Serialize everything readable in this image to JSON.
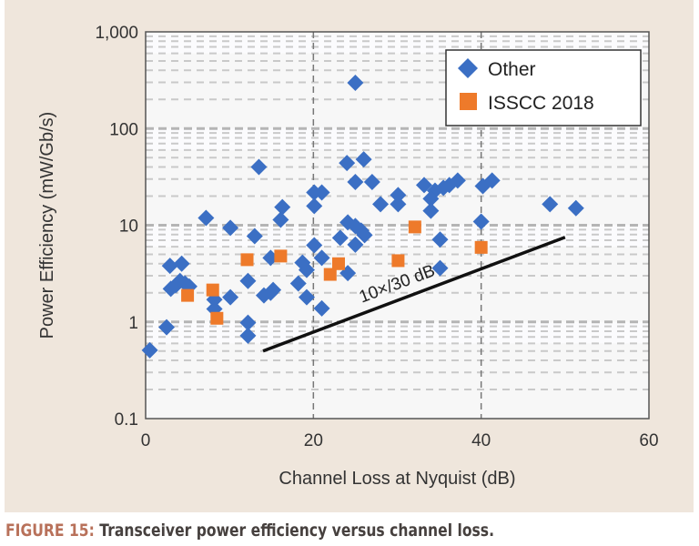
{
  "chart_data": {
    "type": "scatter",
    "xlabel": "Channel Loss at Nyquist (dB)",
    "ylabel": "Power Efficiency (mW/Gb/s)",
    "xlim": [
      0,
      60
    ],
    "ylim": [
      0.1,
      1000
    ],
    "yscale": "log",
    "xticks": [
      "0",
      "20",
      "40",
      "60"
    ],
    "yticks": [
      "0.1",
      "1",
      "10",
      "100",
      "1,000"
    ],
    "grid": true,
    "legend_position": "top-right",
    "colors": {
      "Other": "#3b6fc4",
      "ISSCC 2018": "#ee7a2a"
    },
    "series": [
      {
        "name": "Other",
        "marker": "diamond",
        "points": [
          [
            0.5,
            0.51
          ],
          [
            2.5,
            0.88
          ],
          [
            2.9,
            3.8
          ],
          [
            4.3,
            4.0
          ],
          [
            3.0,
            2.2
          ],
          [
            3.6,
            2.4
          ],
          [
            4.1,
            2.65
          ],
          [
            4.7,
            2.5
          ],
          [
            5.2,
            2.33
          ],
          [
            7.2,
            11.9
          ],
          [
            8.2,
            1.7
          ],
          [
            8.2,
            1.36
          ],
          [
            10.1,
            9.4
          ],
          [
            10.1,
            1.8
          ],
          [
            12.2,
            2.65
          ],
          [
            12.2,
            0.98
          ],
          [
            12.2,
            0.72
          ],
          [
            13.5,
            40
          ],
          [
            13,
            7.7
          ],
          [
            14.1,
            1.88
          ],
          [
            14.9,
            2.0
          ],
          [
            15.2,
            2.14
          ],
          [
            14.9,
            4.6
          ],
          [
            16.3,
            15.4
          ],
          [
            16.1,
            11.4
          ],
          [
            18.2,
            2.5
          ],
          [
            18.7,
            4.1
          ],
          [
            19.2,
            3.45
          ],
          [
            19.2,
            1.8
          ],
          [
            20.1,
            21.8
          ],
          [
            21,
            21.8
          ],
          [
            20.1,
            15.8
          ],
          [
            20.1,
            6.2
          ],
          [
            21,
            4.6
          ],
          [
            21,
            1.38
          ],
          [
            23.2,
            7.4
          ],
          [
            24.1,
            10.7
          ],
          [
            25,
            9.8
          ],
          [
            25.7,
            8.8
          ],
          [
            26.1,
            7.9
          ],
          [
            25,
            6.3
          ],
          [
            24.1,
            3.2
          ],
          [
            24,
            44
          ],
          [
            25,
            297
          ],
          [
            25,
            28
          ],
          [
            26,
            48
          ],
          [
            27,
            28
          ],
          [
            28,
            16.5
          ],
          [
            30.1,
            20.5
          ],
          [
            30.1,
            16.5
          ],
          [
            33.2,
            26
          ],
          [
            34.5,
            22.8
          ],
          [
            35.5,
            24.4
          ],
          [
            36.2,
            26
          ],
          [
            37.2,
            29
          ],
          [
            34,
            18.8
          ],
          [
            34,
            14.1
          ],
          [
            35.1,
            7.1
          ],
          [
            35.1,
            3.6
          ],
          [
            40.2,
            25.4
          ],
          [
            41.3,
            29
          ],
          [
            40,
            10.9
          ],
          [
            48.2,
            16.5
          ],
          [
            51.3,
            15
          ]
        ]
      },
      {
        "name": "ISSCC 2018",
        "marker": "square",
        "points": [
          [
            5,
            1.88
          ],
          [
            8,
            2.14
          ],
          [
            8.5,
            1.09
          ],
          [
            12.1,
            4.4
          ],
          [
            16.1,
            4.8
          ],
          [
            22,
            3.1
          ],
          [
            23,
            4.0
          ],
          [
            30.1,
            4.3
          ],
          [
            32.1,
            9.6
          ],
          [
            40,
            5.9
          ]
        ]
      }
    ],
    "annotations": [
      {
        "text": "10×/30 dB",
        "line_from": [
          14,
          0.5
        ],
        "line_to": [
          50,
          7.5
        ]
      }
    ]
  },
  "caption": {
    "label": "FIGURE 15:",
    "text": "Transceiver power efficiency versus channel loss."
  }
}
